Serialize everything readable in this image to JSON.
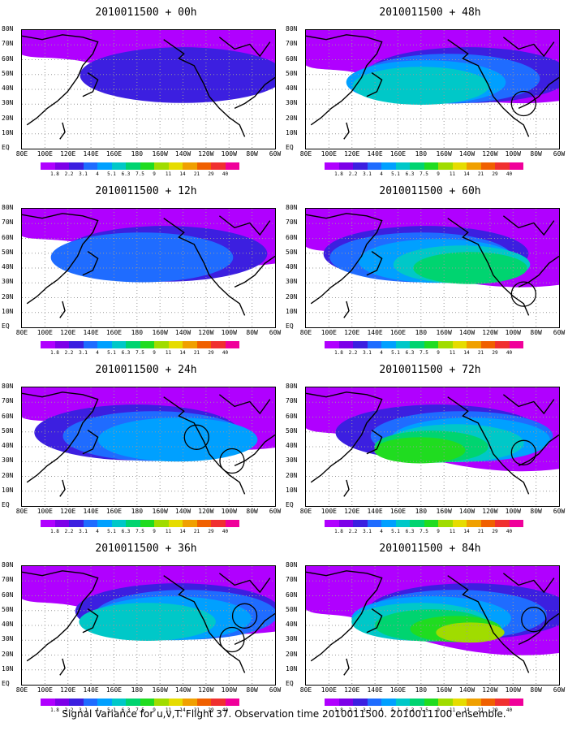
{
  "colorbar": {
    "labels": [
      "1.8",
      "2.2",
      "3.1",
      "4",
      "5.1",
      "6.3",
      "7.5",
      "9",
      "11",
      "14",
      "21",
      "29",
      "40"
    ],
    "colors": [
      "#b000ff",
      "#7d00e8",
      "#3c1fe0",
      "#1f6cff",
      "#00a0ff",
      "#00c8c8",
      "#00d470",
      "#20dc20",
      "#a0dc00",
      "#e6dc00",
      "#f0a000",
      "#f06000",
      "#f03030",
      "#f0009a"
    ]
  },
  "axes": {
    "y_labels": [
      "80N",
      "70N",
      "60N",
      "50N",
      "40N",
      "30N",
      "20N",
      "10N",
      "EQ"
    ],
    "x_labels": [
      "80E",
      "100E",
      "120E",
      "140E",
      "160E",
      "180",
      "160W",
      "140W",
      "120W",
      "100W",
      "80W",
      "60W"
    ]
  },
  "panels": [
    {
      "title": "2010011500 + 00h",
      "level": 0.15,
      "circles": []
    },
    {
      "title": "2010011500 + 48h",
      "level": 0.55,
      "circles": [
        [
          0.86,
          0.62
        ]
      ]
    },
    {
      "title": "2010011500 + 12h",
      "level": 0.25,
      "circles": []
    },
    {
      "title": "2010011500 + 60h",
      "level": 0.65,
      "circles": [
        [
          0.86,
          0.72
        ]
      ]
    },
    {
      "title": "2010011500 + 24h",
      "level": 0.35,
      "circles": [
        [
          0.69,
          0.42
        ],
        [
          0.83,
          0.62
        ]
      ]
    },
    {
      "title": "2010011500 + 72h",
      "level": 0.75,
      "circles": [
        [
          0.86,
          0.55
        ]
      ]
    },
    {
      "title": "2010011500 + 36h",
      "level": 0.45,
      "circles": [
        [
          0.83,
          0.62
        ],
        [
          0.88,
          0.42
        ]
      ]
    },
    {
      "title": "2010011500 + 84h",
      "level": 0.85,
      "circles": [
        [
          0.9,
          0.45
        ]
      ]
    }
  ],
  "footer": "Signal Variance for u,v,T. Flight 37. Observation time 2010011500. 2010011100 ensemble."
}
